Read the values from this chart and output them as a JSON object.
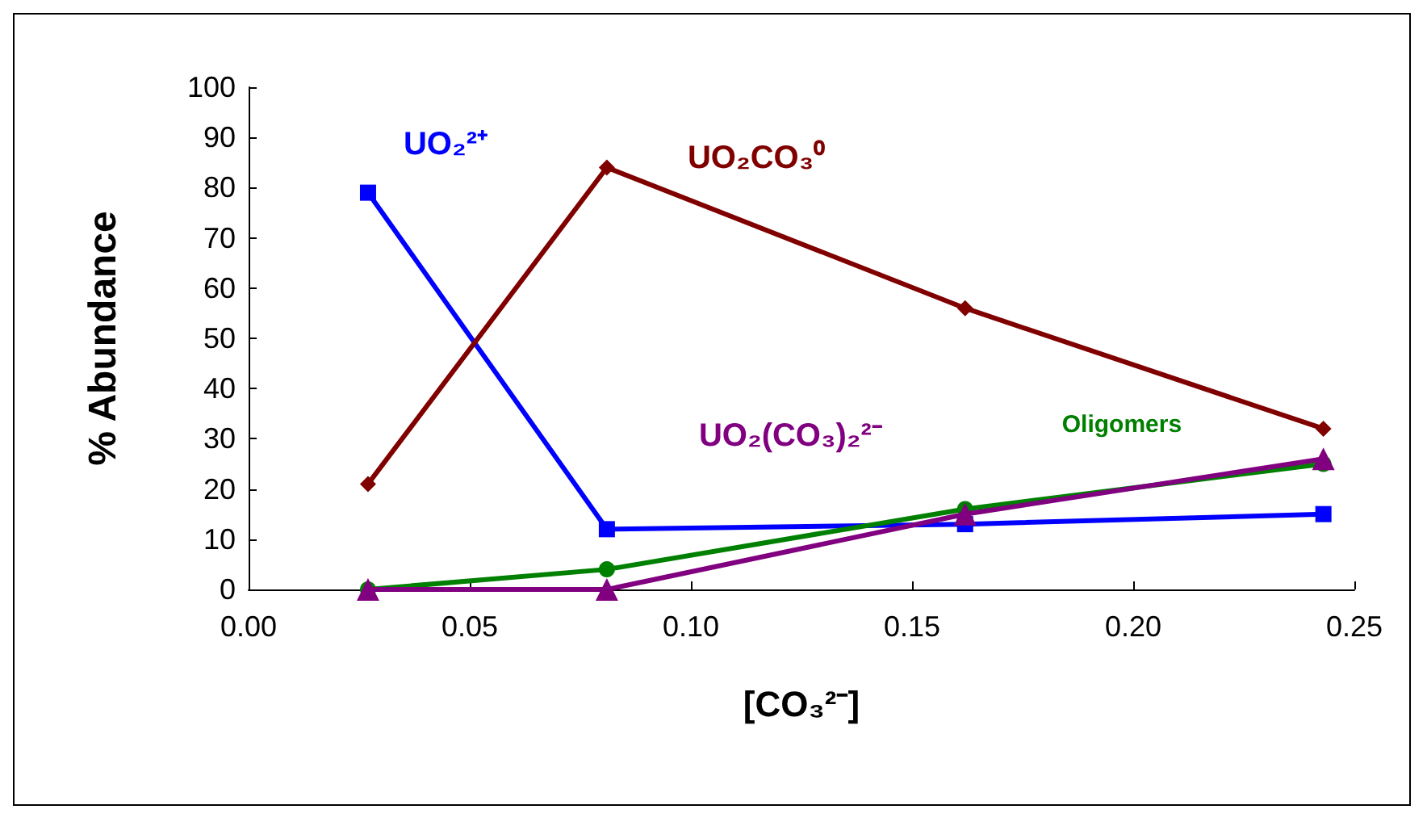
{
  "chart_data": {
    "type": "line",
    "xlabel": "[CO₃²⁻]",
    "ylabel": "% Abundance",
    "x": [
      0.027,
      0.081,
      0.162,
      0.243
    ],
    "series": [
      {
        "name": "UO₂²⁺",
        "color": "#0000ff",
        "marker": "square",
        "values": [
          79,
          12,
          13,
          15
        ]
      },
      {
        "name": "UO₂CO₃⁰",
        "color": "#800000",
        "marker": "diamond",
        "values": [
          21,
          84,
          56,
          32
        ]
      },
      {
        "name": "UO₂(CO₃)₂²⁻",
        "color": "#800080",
        "marker": "triangle",
        "values": [
          0,
          0,
          15,
          26
        ]
      },
      {
        "name": "Oligomers",
        "color": "#008000",
        "marker": "circle",
        "values": [
          0,
          4,
          16,
          25
        ]
      }
    ],
    "xlim": [
      0,
      0.25
    ],
    "xticks": [
      {
        "value": 0,
        "label": "0.00"
      },
      {
        "value": 0.05,
        "label": "0.05"
      },
      {
        "value": 0.1,
        "label": "0.10"
      },
      {
        "value": 0.15,
        "label": "0.15"
      },
      {
        "value": 0.2,
        "label": "0.20"
      },
      {
        "value": 0.25,
        "label": "0.25"
      }
    ],
    "ylim": [
      0,
      100
    ],
    "yticks": [
      0,
      10,
      20,
      30,
      40,
      50,
      60,
      70,
      80,
      90,
      100
    ],
    "grid": false,
    "legend": false,
    "line_style": "solid"
  }
}
